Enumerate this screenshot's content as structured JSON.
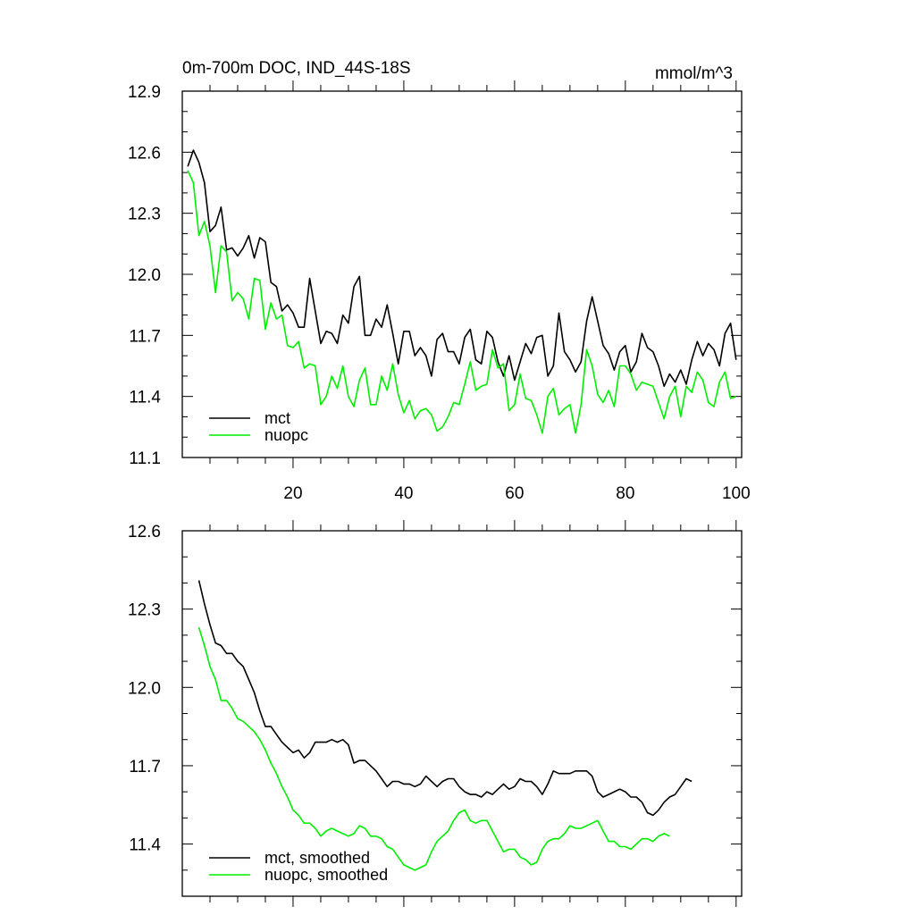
{
  "chart_data": [
    {
      "type": "line",
      "title": "0m-700m DOC, IND_44S-18S",
      "units": "mmol/m^3",
      "xlim": [
        0,
        101
      ],
      "ylim": [
        11.1,
        12.9
      ],
      "yticks": [
        11.1,
        11.4,
        11.7,
        12.0,
        12.3,
        12.6,
        12.9
      ],
      "ytick_labels": [
        "11.1",
        "11.4",
        "11.7",
        "12.0",
        "12.3",
        "12.6",
        "12.9"
      ],
      "xticks": [
        20,
        40,
        60,
        80,
        100
      ],
      "xtick_labels": [
        "20",
        "40",
        "60",
        "80",
        "100"
      ],
      "legend_position": "bottom-left",
      "series": [
        {
          "name": "mct",
          "color": "#000000",
          "x_start": 1,
          "values": [
            12.53,
            12.61,
            12.55,
            12.45,
            12.21,
            12.24,
            12.33,
            12.12,
            12.13,
            12.09,
            12.13,
            12.19,
            12.08,
            12.18,
            12.16,
            11.96,
            11.94,
            11.82,
            11.85,
            11.81,
            11.74,
            11.74,
            11.98,
            11.82,
            11.66,
            11.72,
            11.71,
            11.66,
            11.8,
            11.76,
            11.94,
            11.99,
            11.7,
            11.7,
            11.78,
            11.74,
            11.85,
            11.71,
            11.56,
            11.72,
            11.72,
            11.6,
            11.64,
            11.6,
            11.5,
            11.68,
            11.71,
            11.62,
            11.62,
            11.56,
            11.69,
            11.73,
            11.58,
            11.56,
            11.72,
            11.69,
            11.57,
            11.5,
            11.6,
            11.48,
            11.57,
            11.66,
            11.61,
            11.69,
            11.7,
            11.5,
            11.55,
            11.81,
            11.62,
            11.58,
            11.52,
            11.57,
            11.77,
            11.89,
            11.77,
            11.65,
            11.61,
            11.53,
            11.62,
            11.65,
            11.52,
            11.57,
            11.71,
            11.64,
            11.62,
            11.55,
            11.45,
            11.51,
            11.47,
            11.53,
            11.46,
            11.58,
            11.67,
            11.6,
            11.66,
            11.63,
            11.55,
            11.71,
            11.76,
            11.58
          ]
        },
        {
          "name": "nuopc",
          "color": "#00ee00",
          "x_start": 1,
          "values": [
            12.51,
            12.45,
            12.19,
            12.26,
            12.14,
            11.91,
            12.14,
            12.11,
            11.87,
            11.91,
            11.88,
            11.78,
            11.98,
            11.97,
            11.73,
            11.86,
            11.78,
            11.8,
            11.65,
            11.64,
            11.67,
            11.54,
            11.56,
            11.55,
            11.36,
            11.4,
            11.5,
            11.44,
            11.55,
            11.4,
            11.35,
            11.48,
            11.54,
            11.36,
            11.36,
            11.5,
            11.43,
            11.56,
            11.41,
            11.32,
            11.38,
            11.29,
            11.33,
            11.34,
            11.31,
            11.23,
            11.25,
            11.3,
            11.37,
            11.36,
            11.46,
            11.57,
            11.43,
            11.45,
            11.46,
            11.63,
            11.54,
            11.56,
            11.33,
            11.36,
            11.51,
            11.39,
            11.38,
            11.31,
            11.22,
            11.4,
            11.44,
            11.31,
            11.34,
            11.36,
            11.22,
            11.36,
            11.63,
            11.55,
            11.41,
            11.37,
            11.43,
            11.35,
            11.55,
            11.55,
            11.51,
            11.43,
            11.47,
            11.46,
            11.45,
            11.37,
            11.29,
            11.4,
            11.45,
            11.3,
            11.45,
            11.42,
            11.52,
            11.48,
            11.37,
            11.35,
            11.47,
            11.52,
            11.39,
            11.4
          ]
        }
      ]
    },
    {
      "type": "line",
      "xlim": [
        0,
        101
      ],
      "ylim": [
        11.2,
        12.6
      ],
      "yticks": [
        11.4,
        11.7,
        12.0,
        12.3,
        12.6
      ],
      "ytick_labels": [
        "11.4",
        "11.7",
        "12.0",
        "12.3",
        "12.6"
      ],
      "xticks": [
        20,
        40,
        60,
        80,
        100
      ],
      "legend_position": "bottom-left",
      "series": [
        {
          "name": "mct, smoothed",
          "color": "#000000",
          "x_start": 3,
          "values": [
            12.41,
            12.32,
            12.24,
            12.17,
            12.16,
            12.13,
            12.13,
            12.1,
            12.08,
            12.03,
            11.98,
            11.91,
            11.85,
            11.85,
            11.82,
            11.79,
            11.77,
            11.75,
            11.76,
            11.73,
            11.75,
            11.79,
            11.79,
            11.79,
            11.8,
            11.79,
            11.8,
            11.78,
            11.71,
            11.72,
            11.72,
            11.7,
            11.68,
            11.65,
            11.62,
            11.64,
            11.64,
            11.63,
            11.63,
            11.62,
            11.63,
            11.66,
            11.64,
            11.62,
            11.64,
            11.65,
            11.65,
            11.62,
            11.6,
            11.59,
            11.59,
            11.58,
            11.6,
            11.59,
            11.61,
            11.63,
            11.61,
            11.62,
            11.65,
            11.64,
            11.64,
            11.62,
            11.59,
            11.63,
            11.68,
            11.67,
            11.67,
            11.67,
            11.68,
            11.68,
            11.68,
            11.66,
            11.6,
            11.58,
            11.59,
            11.6,
            11.61,
            11.6,
            11.58,
            11.58,
            11.56,
            11.52,
            11.51,
            11.53,
            11.56,
            11.58,
            11.59,
            11.62,
            11.65,
            11.64
          ]
        },
        {
          "name": "nuopc, smoothed",
          "color": "#00ee00",
          "x_start": 3,
          "values": [
            12.23,
            12.16,
            12.08,
            12.03,
            11.95,
            11.95,
            11.92,
            11.88,
            11.87,
            11.85,
            11.83,
            11.8,
            11.76,
            11.71,
            11.67,
            11.62,
            11.58,
            11.53,
            11.51,
            11.48,
            11.48,
            11.46,
            11.43,
            11.45,
            11.46,
            11.45,
            11.44,
            11.43,
            11.44,
            11.47,
            11.46,
            11.43,
            11.43,
            11.42,
            11.39,
            11.38,
            11.35,
            11.32,
            11.31,
            11.3,
            11.31,
            11.32,
            11.37,
            11.41,
            11.43,
            11.45,
            11.49,
            11.52,
            11.53,
            11.49,
            11.48,
            11.49,
            11.49,
            11.45,
            11.41,
            11.37,
            11.38,
            11.38,
            11.35,
            11.34,
            11.32,
            11.33,
            11.38,
            11.41,
            11.42,
            11.42,
            11.44,
            11.47,
            11.46,
            11.46,
            11.47,
            11.48,
            11.49,
            11.45,
            11.41,
            11.41,
            11.39,
            11.39,
            11.38,
            11.4,
            11.42,
            11.42,
            11.41,
            11.43,
            11.44,
            11.43
          ]
        }
      ]
    }
  ]
}
